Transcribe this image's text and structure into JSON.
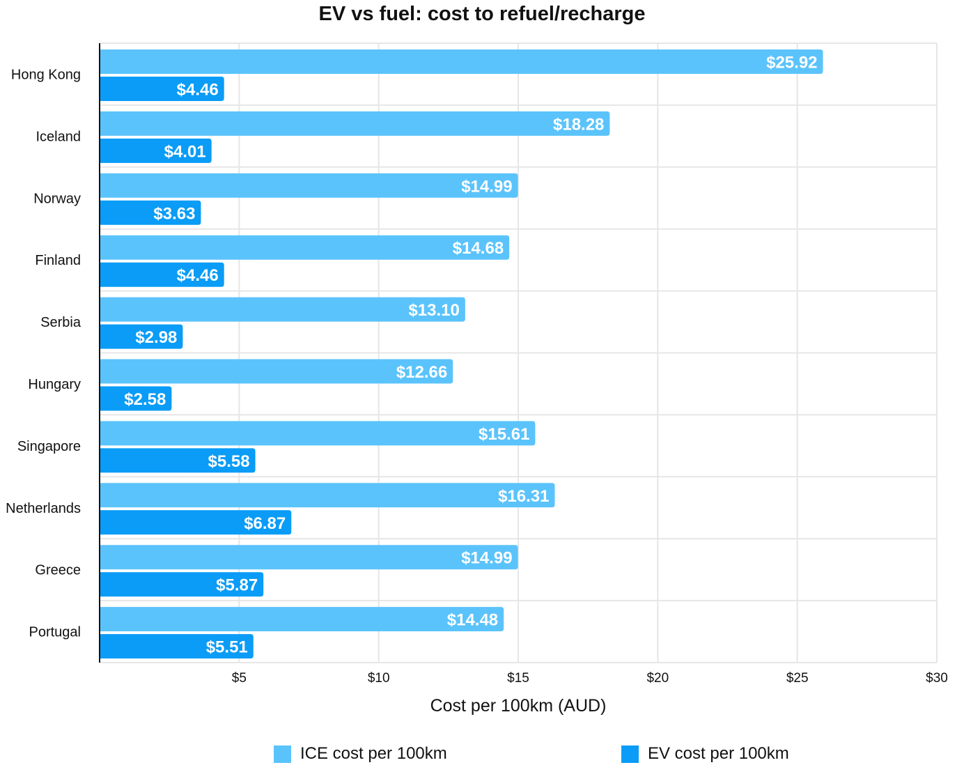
{
  "chart_data": {
    "type": "bar",
    "orientation": "horizontal",
    "title": "EV vs fuel: cost to refuel/recharge",
    "xlabel": "Cost per 100km (AUD)",
    "ylabel": "",
    "xlim": [
      0,
      30
    ],
    "xticks": [
      5,
      10,
      15,
      20,
      25,
      30
    ],
    "xtick_labels": [
      "$5",
      "$10",
      "$15",
      "$20",
      "$25",
      "$30"
    ],
    "grid": true,
    "legend_position": "bottom",
    "categories": [
      "Hong Kong",
      "Iceland",
      "Norway",
      "Finland",
      "Serbia",
      "Hungary",
      "Singapore",
      "Netherlands",
      "Greece",
      "Portugal"
    ],
    "series": [
      {
        "name": "ICE cost per 100km",
        "color": "#5bc3fb",
        "values": [
          25.92,
          18.28,
          14.99,
          14.68,
          13.1,
          12.66,
          15.61,
          16.31,
          14.99,
          14.48
        ],
        "labels": [
          "$25.92",
          "$18.28",
          "$14.99",
          "$14.68",
          "$13.10",
          "$12.66",
          "$15.61",
          "$16.31",
          "$14.99",
          "$14.48"
        ]
      },
      {
        "name": "EV cost per 100km",
        "color": "#0a9cf6",
        "values": [
          4.46,
          4.01,
          3.63,
          4.46,
          2.98,
          2.58,
          5.58,
          6.87,
          5.87,
          5.51
        ],
        "labels": [
          "$4.46",
          "$4.01",
          "$3.63",
          "$4.46",
          "$2.98",
          "$2.58",
          "$5.58",
          "$6.87",
          "$5.87",
          "$5.51"
        ]
      }
    ]
  }
}
